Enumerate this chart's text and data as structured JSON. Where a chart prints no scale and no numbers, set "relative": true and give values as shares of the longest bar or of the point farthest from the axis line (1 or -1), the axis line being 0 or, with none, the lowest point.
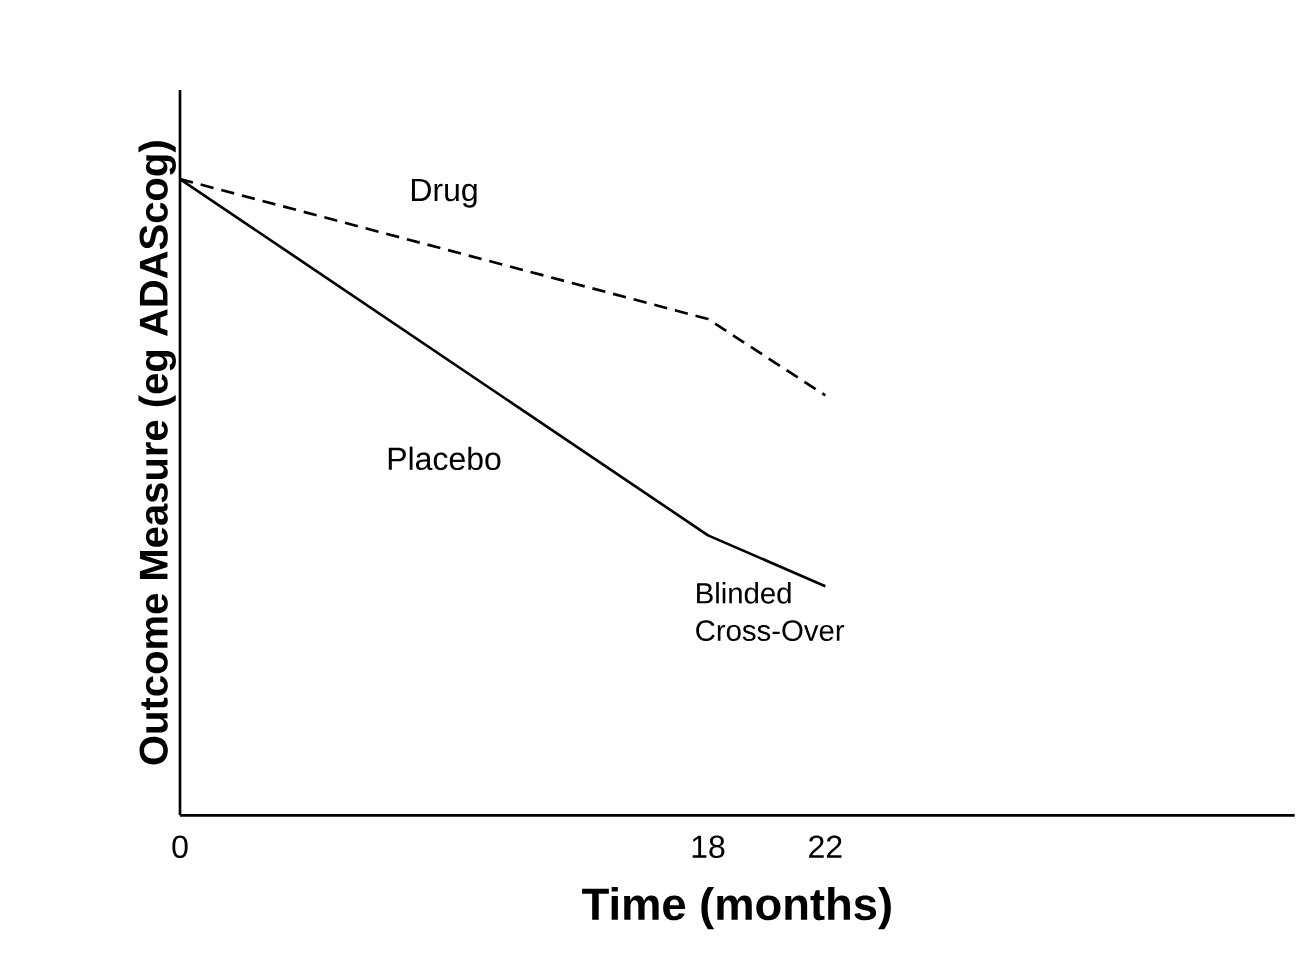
{
  "chart_data": {
    "type": "line",
    "relative": true,
    "xlabel": "Time (months)",
    "ylabel": "Outcome Measure (eg ADAScog)",
    "x": [
      0,
      18,
      22
    ],
    "xlim": [
      0,
      38
    ],
    "xticks": [
      0,
      18,
      22
    ],
    "series": [
      {
        "name": "Drug",
        "color": "#000000",
        "line_style": "dashed",
        "values": [
          1,
          0.78,
          0.66
        ]
      },
      {
        "name": "Placebo",
        "color": "#000000",
        "line_style": "solid",
        "values": [
          1,
          0.44,
          0.36
        ]
      }
    ],
    "annotations": [
      {
        "text": "Blinded Cross-Over",
        "x": 18,
        "y": 0.44
      }
    ],
    "legend": false,
    "grid": false,
    "marker": "none"
  }
}
